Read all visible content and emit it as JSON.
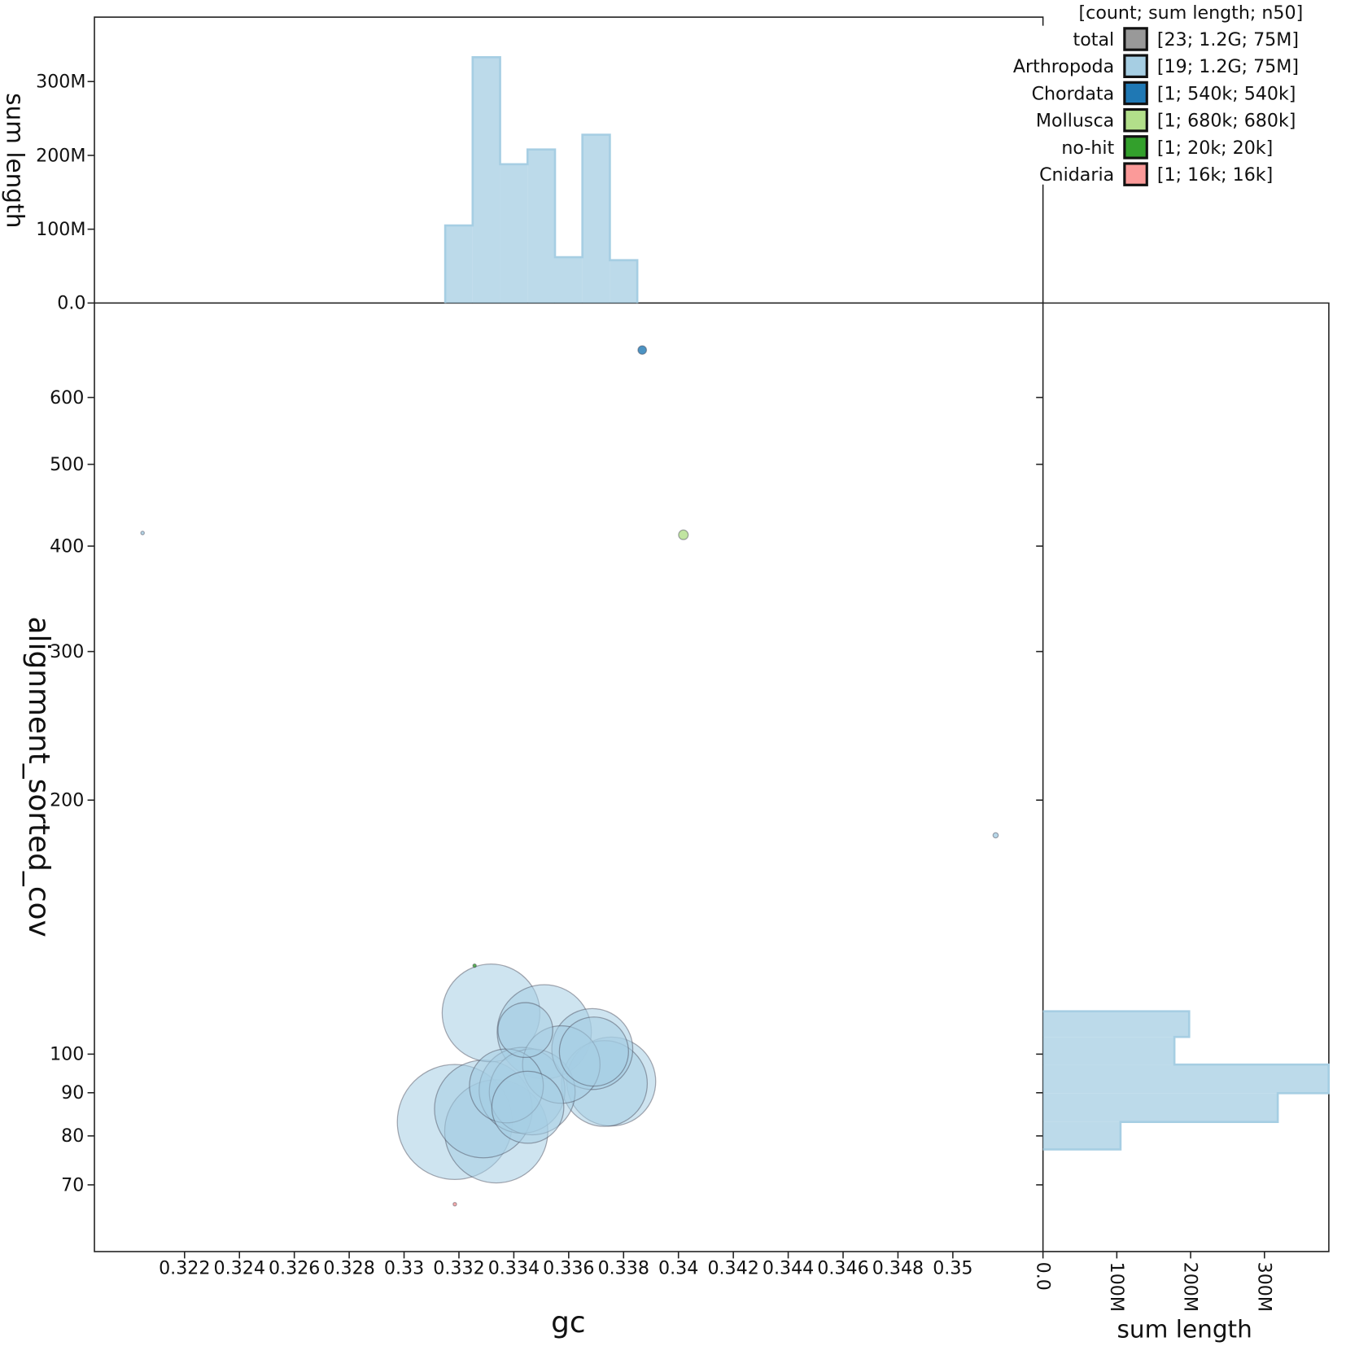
{
  "chart_data": {
    "type": "scatter",
    "xlabel": "gc",
    "ylabel": "alignment_sorted_cov",
    "top_hist_ylabel": "sum length",
    "right_hist_xlabel": "sum length",
    "xlim": [
      0.32047,
      0.35233
    ],
    "ylim_log": [
      62,
      720
    ],
    "x_ticks": [
      0.322,
      0.324,
      0.326,
      0.328,
      0.33,
      0.332,
      0.334,
      0.336,
      0.338,
      0.34,
      0.342,
      0.344,
      0.346,
      0.348,
      0.35
    ],
    "x_tick_labels": [
      "0.322",
      "0.324",
      "0.326",
      "0.328",
      "0.33",
      "0.332",
      "0.334",
      "0.336",
      "0.338",
      "0.34",
      "0.342",
      "0.344",
      "0.346",
      "0.348",
      "0.35"
    ],
    "y_ticks": [
      70,
      80,
      90,
      100,
      200,
      300,
      400,
      500,
      600
    ],
    "y_tick_labels": [
      "70",
      "80",
      "90",
      "100",
      "200",
      "300",
      "400",
      "500",
      "600"
    ],
    "hist_ticks": [
      0,
      100,
      200,
      300
    ],
    "hist_tick_labels": [
      "0.0",
      "100M",
      "200M",
      "300M"
    ],
    "hist_max_M": 387,
    "legend": {
      "title": "[count; sum length; n50]",
      "position": "top-right",
      "entries": [
        {
          "name": "total",
          "color": "#999999",
          "stats": "[23; 1.2G; 75M]"
        },
        {
          "name": "Arthropoda",
          "color": "#a6cee3",
          "stats": "[19; 1.2G; 75M]"
        },
        {
          "name": "Chordata",
          "color": "#1f78b4",
          "stats": "[1; 540k; 540k]"
        },
        {
          "name": "Mollusca",
          "color": "#b2df8a",
          "stats": "[1; 680k; 680k]"
        },
        {
          "name": "no-hit",
          "color": "#33a02c",
          "stats": "[1; 20k; 20k]"
        },
        {
          "name": "Cnidaria",
          "color": "#fb9a99",
          "stats": "[1; 16k; 16k]"
        }
      ]
    },
    "points": [
      {
        "taxon": "Arthropoda",
        "gc": 0.33185,
        "cov": 83.1,
        "length_M": 97
      },
      {
        "taxon": "Arthropoda",
        "gc": 0.33336,
        "cov": 81.0,
        "length_M": 78
      },
      {
        "taxon": "Arthropoda",
        "gc": 0.33289,
        "cov": 86.1,
        "length_M": 70
      },
      {
        "taxon": "Arthropoda",
        "gc": 0.33317,
        "cov": 111.9,
        "length_M": 70
      },
      {
        "taxon": "Arthropoda",
        "gc": 0.33511,
        "cov": 106.3,
        "length_M": 65
      },
      {
        "taxon": "Arthropoda",
        "gc": 0.33755,
        "cov": 92.8,
        "length_M": 58
      },
      {
        "taxon": "Arthropoda",
        "gc": 0.3373,
        "cov": 92.3,
        "length_M": 54
      },
      {
        "taxon": "Arthropoda",
        "gc": 0.3343,
        "cov": 90.6,
        "length_M": 54
      },
      {
        "taxon": "Arthropoda",
        "gc": 0.33467,
        "cov": 90.2,
        "length_M": 54
      },
      {
        "taxon": "Arthropoda",
        "gc": 0.33686,
        "cov": 101.4,
        "length_M": 48
      },
      {
        "taxon": "Arthropoda",
        "gc": 0.33573,
        "cov": 97.2,
        "length_M": 44
      },
      {
        "taxon": "Arthropoda",
        "gc": 0.33373,
        "cov": 91.7,
        "length_M": 40
      },
      {
        "taxon": "Arthropoda",
        "gc": 0.33451,
        "cov": 86.5,
        "length_M": 38
      },
      {
        "taxon": "Arthropoda",
        "gc": 0.33692,
        "cov": 100.7,
        "length_M": 35
      },
      {
        "taxon": "Arthropoda",
        "gc": 0.33442,
        "cov": 106.8,
        "length_M": 22
      },
      {
        "taxon": "Arthropoda",
        "gc": 0.32047,
        "cov": 414.6,
        "length_M": 0.09
      },
      {
        "taxon": "Arthropoda",
        "gc": 0.35156,
        "cov": 181.7,
        "length_M": 0.2
      },
      {
        "taxon": "Chordata",
        "gc": 0.33868,
        "cov": 683,
        "length_M": 0.54
      },
      {
        "taxon": "Mollusca",
        "gc": 0.34018,
        "cov": 412.5,
        "length_M": 0.68
      },
      {
        "taxon": "no-hit",
        "gc": 0.33257,
        "cov": 127.3,
        "length_M": 0.02
      },
      {
        "taxon": "Cnidaria",
        "gc": 0.33185,
        "cov": 66.4,
        "length_M": 0.016
      }
    ],
    "gc_hist": {
      "bin_start": 0.3315,
      "bin_width": 0.001,
      "values_M": [
        105,
        333,
        188,
        208,
        62,
        228,
        58
      ]
    },
    "cov_hist": {
      "bin_edges": [
        77.1,
        83.1,
        89.9,
        97.2,
        104.8,
        112.4
      ],
      "values_M": [
        105,
        318,
        387,
        178,
        198
      ]
    }
  }
}
